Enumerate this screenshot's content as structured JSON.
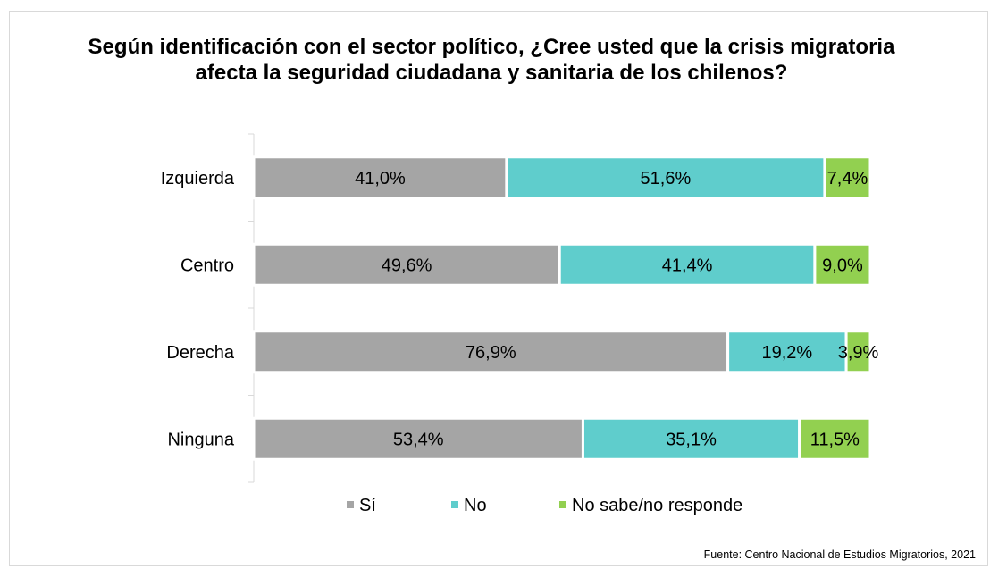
{
  "chart_data": {
    "type": "bar",
    "orientation": "horizontal",
    "stacked": true,
    "title": "Según identificación con el sector político, ¿Cree usted que la crisis migratoria afecta la seguridad ciudadana y sanitaria de los chilenos?",
    "categories": [
      "Izquierda",
      "Centro",
      "Derecha",
      "Ninguna"
    ],
    "series": [
      {
        "name": "Sí",
        "color": "#a5a5a5",
        "values": [
          41.0,
          49.6,
          76.9,
          53.4
        ],
        "labels": [
          "41,0%",
          "49,6%",
          "76,9%",
          "53,4%"
        ]
      },
      {
        "name": "No",
        "color": "#5fcdcc",
        "values": [
          51.6,
          41.4,
          19.2,
          35.1
        ],
        "labels": [
          "51,6%",
          "41,4%",
          "19,2%",
          "35,1%"
        ]
      },
      {
        "name": "No sabe/no responde",
        "color": "#92d050",
        "values": [
          7.4,
          9.0,
          3.9,
          11.5
        ],
        "labels": [
          "7,4%",
          "9,0%",
          "3,9%",
          "11,5%"
        ]
      }
    ],
    "xlim": [
      0,
      100
    ],
    "grid": false,
    "legend_position": "bottom"
  },
  "source": "Fuente: Centro Nacional de Estudios Migratorios, 2021"
}
